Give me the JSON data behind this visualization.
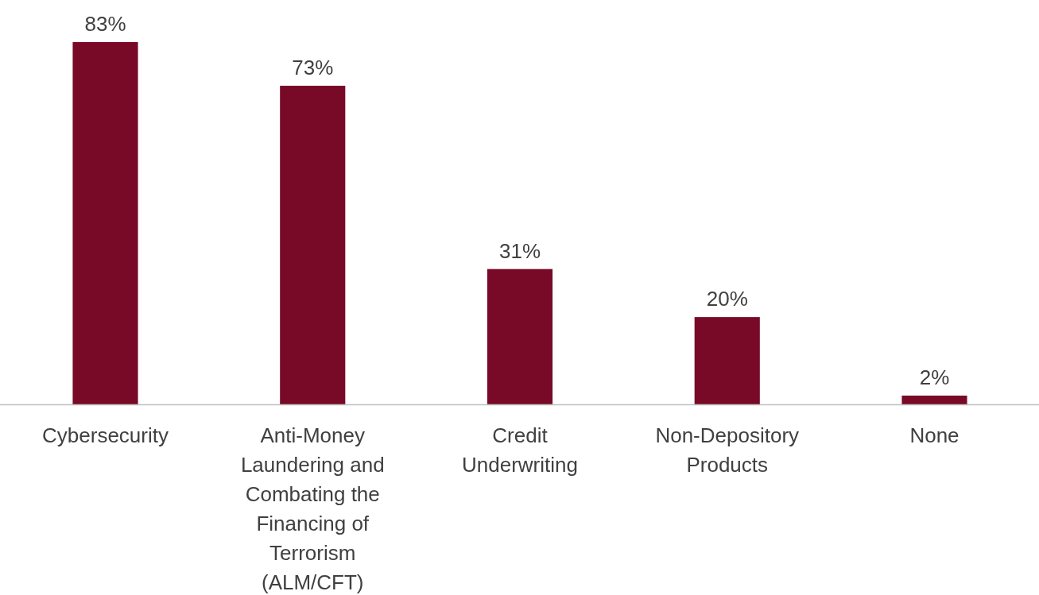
{
  "chart_data": {
    "type": "bar",
    "categories": [
      "Cybersecurity",
      "Anti-Money Laundering and Combating the Financing of Terrorism (ALM/CFT)",
      "Credit Underwriting",
      "Non-Depository Products",
      "None"
    ],
    "values": [
      83,
      73,
      31,
      20,
      2
    ],
    "value_labels": [
      "83%",
      "73%",
      "31%",
      "20%",
      "2%"
    ],
    "color": "#780a28"
  }
}
